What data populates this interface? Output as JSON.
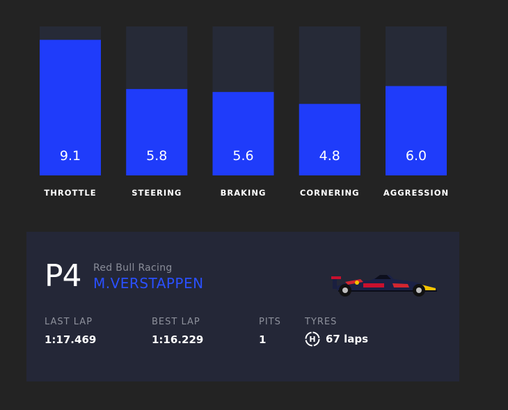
{
  "chart_data": {
    "type": "bar",
    "categories": [
      "THROTTLE",
      "STEERING",
      "BRAKING",
      "CORNERING",
      "AGGRESSION"
    ],
    "values": [
      9.1,
      5.8,
      5.6,
      4.8,
      6.0
    ],
    "value_labels": [
      "9.1",
      "5.8",
      "5.6",
      "4.8",
      "6.0"
    ],
    "ylim": [
      0,
      10
    ],
    "grid": false,
    "colors": {
      "bar": "#1f3cfa",
      "track": "#262a37"
    }
  },
  "driver_card": {
    "position": "P4",
    "team": "Red Bull Racing",
    "driver": "M.VERSTAPPEN",
    "car_icon": "red-bull-f1-car-icon",
    "stats": {
      "last_lap_label": "LAST LAP",
      "last_lap": "1:17.469",
      "best_lap_label": "BEST LAP",
      "best_lap": "1:16.229",
      "pits_label": "PITS",
      "pits": "1",
      "tyres_label": "TYRES",
      "tyre_compound": "H",
      "tyre_laps": "67 laps"
    },
    "colors": {
      "driver": "#2a50ff",
      "card": "#242737"
    }
  }
}
